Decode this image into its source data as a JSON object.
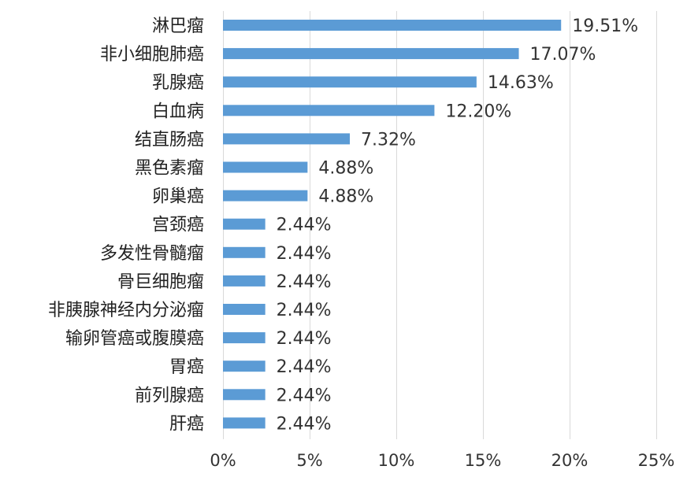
{
  "chart_data": {
    "type": "bar",
    "orientation": "horizontal",
    "categories": [
      "淋巴瘤",
      "非小细胞肺癌",
      "乳腺癌",
      "白血病",
      "结直肠癌",
      "黑色素瘤",
      "卵巢癌",
      "宫颈癌",
      "多发性骨髓瘤",
      "骨巨细胞瘤",
      "非胰腺神经内分泌瘤",
      "输卵管癌或腹膜癌",
      "胃癌",
      "前列腺癌",
      "肝癌"
    ],
    "values": [
      19.51,
      17.07,
      14.63,
      12.2,
      7.32,
      4.88,
      4.88,
      2.44,
      2.44,
      2.44,
      2.44,
      2.44,
      2.44,
      2.44,
      2.44
    ],
    "value_labels": [
      "19.51%",
      "17.07%",
      "14.63%",
      "12.20%",
      "7.32%",
      "4.88%",
      "4.88%",
      "2.44%",
      "2.44%",
      "2.44%",
      "2.44%",
      "2.44%",
      "2.44%",
      "2.44%",
      "2.44%"
    ],
    "xlim": [
      0,
      25
    ],
    "x_ticks": [
      0,
      5,
      10,
      15,
      20,
      25
    ],
    "x_tick_labels": [
      "0%",
      "5%",
      "10%",
      "15%",
      "20%",
      "25%"
    ],
    "grid": "vertical",
    "legend": "none",
    "bar_color": "#5b9bd5"
  }
}
